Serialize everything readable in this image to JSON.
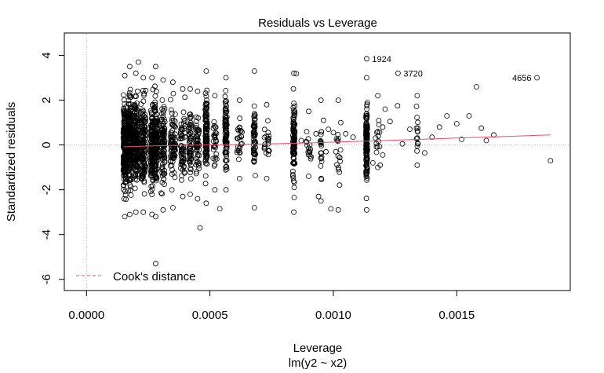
{
  "chart_data": {
    "type": "scatter",
    "title": "Residuals vs Leverage",
    "xlabel": "Leverage",
    "xlabel_sub": "lm(y2 ~ x2)",
    "ylabel": "Standardized residuals",
    "xlim": [
      -9e-05,
      0.00196
    ],
    "ylim": [
      -6.5,
      5.0
    ],
    "x_ticks": [
      0.0,
      0.0005,
      0.001,
      0.0015
    ],
    "x_tick_labels": [
      "0.0000",
      "0.0005",
      "0.0010",
      "0.0015"
    ],
    "y_ticks": [
      -6,
      -4,
      -2,
      0,
      2,
      4
    ],
    "y_tick_labels": [
      "-6",
      "-4",
      "-2",
      "0",
      "2",
      "4"
    ],
    "reference_lines": {
      "x": 0,
      "y": 0,
      "style": "dotted",
      "color": "#b0b0b0"
    },
    "marker": "open-circle",
    "point_color": "#000000",
    "smoother_color": "#df536b",
    "legend": {
      "position": "bottom-left",
      "entries": [
        {
          "label": "Cook's distance",
          "style": "dashed",
          "color": "#df536b"
        }
      ]
    },
    "labeled_points": [
      {
        "label": "1924",
        "x": 0.001135,
        "y": 3.85
      },
      {
        "label": "3720",
        "x": 0.001262,
        "y": 3.2
      },
      {
        "label": "4656",
        "x": 0.001825,
        "y": 3.0
      }
    ],
    "smoother": [
      [
        0.00015,
        -0.08
      ],
      [
        0.0003,
        -0.03
      ],
      [
        0.0005,
        0.0
      ],
      [
        0.0007,
        0.04
      ],
      [
        0.0009,
        0.09
      ],
      [
        0.0011,
        0.16
      ],
      [
        0.0013,
        0.23
      ],
      [
        0.0015,
        0.31
      ],
      [
        0.0017,
        0.38
      ],
      [
        0.00188,
        0.45
      ]
    ],
    "strips": [
      {
        "x": 0.000155,
        "ymin": -3.2,
        "ymax": 3.1,
        "width": 1.2e-05,
        "n": 260
      },
      {
        "x": 0.000175,
        "ymin": -3.1,
        "ymax": 3.5,
        "width": 1.2e-05,
        "n": 220
      },
      {
        "x": 0.0002,
        "ymin": -3.0,
        "ymax": 3.2,
        "width": 1.5e-05,
        "n": 180
      },
      {
        "x": 0.00023,
        "ymin": -3.0,
        "ymax": 3.0,
        "width": 2e-05,
        "n": 150
      },
      {
        "x": 0.000265,
        "ymin": -3.1,
        "ymax": 3.0,
        "width": 1e-05,
        "n": 140
      },
      {
        "x": 0.00028,
        "ymin": -3.2,
        "ymax": 3.5,
        "width": 1.2e-05,
        "n": 170
      },
      {
        "x": 0.00031,
        "ymin": -2.9,
        "ymax": 2.9,
        "width": 1.5e-05,
        "n": 100
      },
      {
        "x": 0.00035,
        "ymin": -2.8,
        "ymax": 2.8,
        "width": 2e-05,
        "n": 80
      },
      {
        "x": 0.00039,
        "ymin": -2.3,
        "ymax": 2.5,
        "width": 2e-05,
        "n": 60
      },
      {
        "x": 0.00042,
        "ymin": -2.2,
        "ymax": 2.5,
        "width": 1e-05,
        "n": 55
      },
      {
        "x": 0.00045,
        "ymin": -2.4,
        "ymax": 2.4,
        "width": 1.5e-05,
        "n": 55
      },
      {
        "x": 0.000485,
        "ymin": -2.6,
        "ymax": 3.3,
        "width": 8e-06,
        "n": 110
      },
      {
        "x": 0.00052,
        "ymin": -2.0,
        "ymax": 2.2,
        "width": 1.5e-05,
        "n": 30
      },
      {
        "x": 0.000565,
        "ymin": -2.0,
        "ymax": 3.0,
        "width": 8e-06,
        "n": 90
      },
      {
        "x": 0.00062,
        "ymin": -1.5,
        "ymax": 2.0,
        "width": 2e-05,
        "n": 25
      },
      {
        "x": 0.00068,
        "ymin": -2.8,
        "ymax": 3.3,
        "width": 8e-06,
        "n": 60
      },
      {
        "x": 0.00073,
        "ymin": -1.5,
        "ymax": 1.8,
        "width": 2e-05,
        "n": 20
      },
      {
        "x": 0.00084,
        "ymin": -3.0,
        "ymax": 3.2,
        "width": 8e-06,
        "n": 110
      },
      {
        "x": 0.0009,
        "ymin": -1.4,
        "ymax": 1.5,
        "width": 2e-05,
        "n": 15
      },
      {
        "x": 0.00095,
        "ymin": -2.5,
        "ymax": 2.0,
        "width": 6e-06,
        "n": 20
      },
      {
        "x": 0.00102,
        "ymin": -2.9,
        "ymax": 2.0,
        "width": 2e-05,
        "n": 15
      },
      {
        "x": 0.001135,
        "ymin": -2.9,
        "ymax": 3.0,
        "width": 6e-06,
        "n": 150
      },
      {
        "x": 0.00118,
        "ymin": -1.0,
        "ymax": 2.2,
        "width": 2e-05,
        "n": 12
      },
      {
        "x": 0.00134,
        "ymin": -0.9,
        "ymax": 2.2,
        "width": 6e-06,
        "n": 14
      }
    ],
    "scatter_points": [
      [
        0.00028,
        -5.3
      ],
      [
        0.00046,
        -3.7
      ],
      [
        0.00054,
        -2.85
      ],
      [
        0.00021,
        3.7
      ],
      [
        0.00085,
        3.18
      ],
      [
        0.0012,
        -0.45
      ],
      [
        0.00123,
        1.05
      ],
      [
        0.00126,
        1.75
      ],
      [
        0.00128,
        0.05
      ],
      [
        0.00131,
        0.7
      ],
      [
        0.00137,
        -0.35
      ],
      [
        0.0014,
        0.35
      ],
      [
        0.00143,
        0.8
      ],
      [
        0.00146,
        1.3
      ],
      [
        0.0015,
        0.95
      ],
      [
        0.00152,
        0.25
      ],
      [
        0.00155,
        1.3
      ],
      [
        0.00158,
        2.6
      ],
      [
        0.0016,
        0.75
      ],
      [
        0.00162,
        0.2
      ],
      [
        0.00165,
        0.45
      ],
      [
        0.00118,
        0.6
      ],
      [
        0.00116,
        -0.8
      ],
      [
        0.00119,
        -0.9
      ],
      [
        0.0012,
        0.8
      ],
      [
        0.00121,
        1.6
      ],
      [
        0.00188,
        -0.7
      ],
      [
        0.00105,
        0.5
      ],
      [
        0.00108,
        0.35
      ],
      [
        0.001,
        0.55
      ],
      [
        0.00098,
        0.7
      ],
      [
        0.00096,
        1.1
      ],
      [
        0.00097,
        -0.3
      ],
      [
        0.00093,
        0.5
      ],
      [
        0.00089,
        0.15
      ],
      [
        0.00087,
        0.2
      ],
      [
        0.00099,
        -2.85
      ],
      [
        0.00103,
        1.0
      ],
      [
        0.00101,
        -0.3
      ],
      [
        0.00094,
        -2.3
      ]
    ]
  }
}
